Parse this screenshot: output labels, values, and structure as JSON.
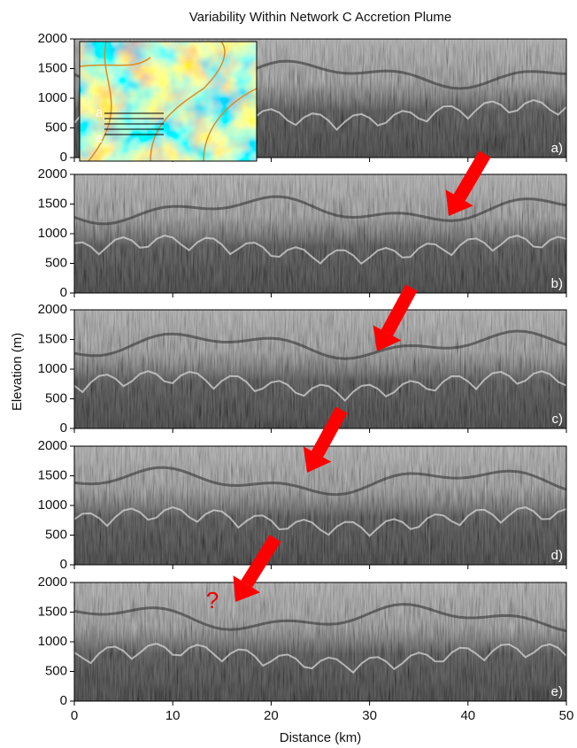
{
  "title": "Variability Within Network C Accretion Plume",
  "xlabel": "Distance (km)",
  "ylabel": "Elevation (m)",
  "chart_data": [
    {
      "type": "image",
      "panel_label": "a)",
      "inset_labels": [
        "a",
        "e"
      ],
      "xlim": [
        0,
        50
      ],
      "ylim": [
        0,
        2000
      ],
      "yticks": [
        0,
        500,
        1000,
        1500,
        2000
      ]
    },
    {
      "type": "image",
      "panel_label": "b)",
      "xlim": [
        0,
        50
      ],
      "ylim": [
        0,
        2000
      ],
      "yticks": [
        0,
        500,
        1000,
        1500,
        2000
      ]
    },
    {
      "type": "image",
      "panel_label": "c)",
      "xlim": [
        0,
        50
      ],
      "ylim": [
        0,
        2000
      ],
      "yticks": [
        0,
        500,
        1000,
        1500,
        2000
      ]
    },
    {
      "type": "image",
      "panel_label": "d)",
      "xlim": [
        0,
        50
      ],
      "ylim": [
        0,
        2000
      ],
      "yticks": [
        0,
        500,
        1000,
        1500,
        2000
      ]
    },
    {
      "type": "image",
      "panel_label": "e)",
      "annotation": "?",
      "xlim": [
        0,
        50
      ],
      "ylim": [
        0,
        2000
      ],
      "yticks": [
        0,
        500,
        1000,
        1500,
        2000
      ],
      "xticks": [
        0,
        10,
        20,
        30,
        40,
        50
      ]
    }
  ]
}
